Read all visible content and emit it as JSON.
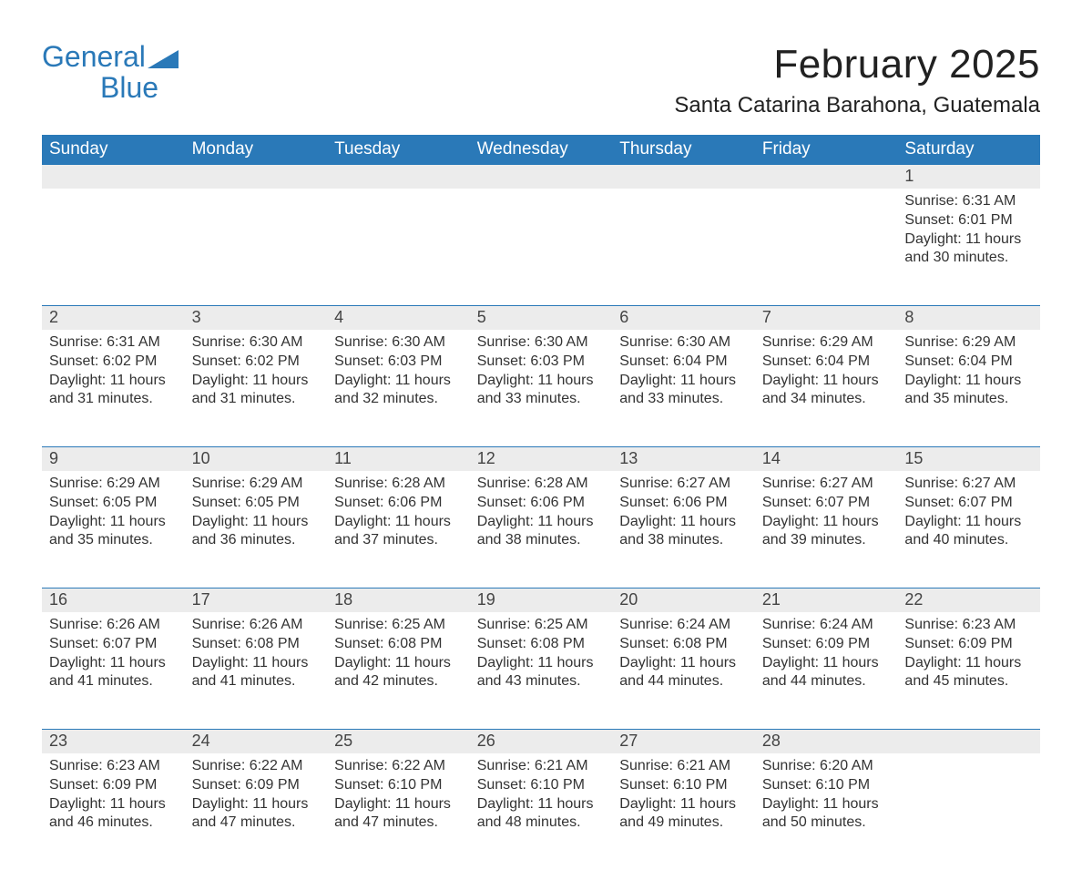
{
  "logo": {
    "general": "General",
    "blue": "Blue"
  },
  "header": {
    "month_title": "February 2025",
    "location": "Santa Catarina Barahona, Guatemala"
  },
  "colors": {
    "brand": "#2a79b8",
    "header_band": "#2a79b8",
    "header_text": "#ffffff",
    "daynum_bg": "#ececec",
    "body_text": "#333333",
    "page_bg": "#ffffff"
  },
  "weekdays": [
    "Sunday",
    "Monday",
    "Tuesday",
    "Wednesday",
    "Thursday",
    "Friday",
    "Saturday"
  ],
  "weeks": [
    {
      "days": [
        {
          "num": "",
          "sunrise": "",
          "sunset": "",
          "daylight1": "",
          "daylight2": ""
        },
        {
          "num": "",
          "sunrise": "",
          "sunset": "",
          "daylight1": "",
          "daylight2": ""
        },
        {
          "num": "",
          "sunrise": "",
          "sunset": "",
          "daylight1": "",
          "daylight2": ""
        },
        {
          "num": "",
          "sunrise": "",
          "sunset": "",
          "daylight1": "",
          "daylight2": ""
        },
        {
          "num": "",
          "sunrise": "",
          "sunset": "",
          "daylight1": "",
          "daylight2": ""
        },
        {
          "num": "",
          "sunrise": "",
          "sunset": "",
          "daylight1": "",
          "daylight2": ""
        },
        {
          "num": "1",
          "sunrise": "Sunrise: 6:31 AM",
          "sunset": "Sunset: 6:01 PM",
          "daylight1": "Daylight: 11 hours",
          "daylight2": "and 30 minutes."
        }
      ]
    },
    {
      "days": [
        {
          "num": "2",
          "sunrise": "Sunrise: 6:31 AM",
          "sunset": "Sunset: 6:02 PM",
          "daylight1": "Daylight: 11 hours",
          "daylight2": "and 31 minutes."
        },
        {
          "num": "3",
          "sunrise": "Sunrise: 6:30 AM",
          "sunset": "Sunset: 6:02 PM",
          "daylight1": "Daylight: 11 hours",
          "daylight2": "and 31 minutes."
        },
        {
          "num": "4",
          "sunrise": "Sunrise: 6:30 AM",
          "sunset": "Sunset: 6:03 PM",
          "daylight1": "Daylight: 11 hours",
          "daylight2": "and 32 minutes."
        },
        {
          "num": "5",
          "sunrise": "Sunrise: 6:30 AM",
          "sunset": "Sunset: 6:03 PM",
          "daylight1": "Daylight: 11 hours",
          "daylight2": "and 33 minutes."
        },
        {
          "num": "6",
          "sunrise": "Sunrise: 6:30 AM",
          "sunset": "Sunset: 6:04 PM",
          "daylight1": "Daylight: 11 hours",
          "daylight2": "and 33 minutes."
        },
        {
          "num": "7",
          "sunrise": "Sunrise: 6:29 AM",
          "sunset": "Sunset: 6:04 PM",
          "daylight1": "Daylight: 11 hours",
          "daylight2": "and 34 minutes."
        },
        {
          "num": "8",
          "sunrise": "Sunrise: 6:29 AM",
          "sunset": "Sunset: 6:04 PM",
          "daylight1": "Daylight: 11 hours",
          "daylight2": "and 35 minutes."
        }
      ]
    },
    {
      "days": [
        {
          "num": "9",
          "sunrise": "Sunrise: 6:29 AM",
          "sunset": "Sunset: 6:05 PM",
          "daylight1": "Daylight: 11 hours",
          "daylight2": "and 35 minutes."
        },
        {
          "num": "10",
          "sunrise": "Sunrise: 6:29 AM",
          "sunset": "Sunset: 6:05 PM",
          "daylight1": "Daylight: 11 hours",
          "daylight2": "and 36 minutes."
        },
        {
          "num": "11",
          "sunrise": "Sunrise: 6:28 AM",
          "sunset": "Sunset: 6:06 PM",
          "daylight1": "Daylight: 11 hours",
          "daylight2": "and 37 minutes."
        },
        {
          "num": "12",
          "sunrise": "Sunrise: 6:28 AM",
          "sunset": "Sunset: 6:06 PM",
          "daylight1": "Daylight: 11 hours",
          "daylight2": "and 38 minutes."
        },
        {
          "num": "13",
          "sunrise": "Sunrise: 6:27 AM",
          "sunset": "Sunset: 6:06 PM",
          "daylight1": "Daylight: 11 hours",
          "daylight2": "and 38 minutes."
        },
        {
          "num": "14",
          "sunrise": "Sunrise: 6:27 AM",
          "sunset": "Sunset: 6:07 PM",
          "daylight1": "Daylight: 11 hours",
          "daylight2": "and 39 minutes."
        },
        {
          "num": "15",
          "sunrise": "Sunrise: 6:27 AM",
          "sunset": "Sunset: 6:07 PM",
          "daylight1": "Daylight: 11 hours",
          "daylight2": "and 40 minutes."
        }
      ]
    },
    {
      "days": [
        {
          "num": "16",
          "sunrise": "Sunrise: 6:26 AM",
          "sunset": "Sunset: 6:07 PM",
          "daylight1": "Daylight: 11 hours",
          "daylight2": "and 41 minutes."
        },
        {
          "num": "17",
          "sunrise": "Sunrise: 6:26 AM",
          "sunset": "Sunset: 6:08 PM",
          "daylight1": "Daylight: 11 hours",
          "daylight2": "and 41 minutes."
        },
        {
          "num": "18",
          "sunrise": "Sunrise: 6:25 AM",
          "sunset": "Sunset: 6:08 PM",
          "daylight1": "Daylight: 11 hours",
          "daylight2": "and 42 minutes."
        },
        {
          "num": "19",
          "sunrise": "Sunrise: 6:25 AM",
          "sunset": "Sunset: 6:08 PM",
          "daylight1": "Daylight: 11 hours",
          "daylight2": "and 43 minutes."
        },
        {
          "num": "20",
          "sunrise": "Sunrise: 6:24 AM",
          "sunset": "Sunset: 6:08 PM",
          "daylight1": "Daylight: 11 hours",
          "daylight2": "and 44 minutes."
        },
        {
          "num": "21",
          "sunrise": "Sunrise: 6:24 AM",
          "sunset": "Sunset: 6:09 PM",
          "daylight1": "Daylight: 11 hours",
          "daylight2": "and 44 minutes."
        },
        {
          "num": "22",
          "sunrise": "Sunrise: 6:23 AM",
          "sunset": "Sunset: 6:09 PM",
          "daylight1": "Daylight: 11 hours",
          "daylight2": "and 45 minutes."
        }
      ]
    },
    {
      "days": [
        {
          "num": "23",
          "sunrise": "Sunrise: 6:23 AM",
          "sunset": "Sunset: 6:09 PM",
          "daylight1": "Daylight: 11 hours",
          "daylight2": "and 46 minutes."
        },
        {
          "num": "24",
          "sunrise": "Sunrise: 6:22 AM",
          "sunset": "Sunset: 6:09 PM",
          "daylight1": "Daylight: 11 hours",
          "daylight2": "and 47 minutes."
        },
        {
          "num": "25",
          "sunrise": "Sunrise: 6:22 AM",
          "sunset": "Sunset: 6:10 PM",
          "daylight1": "Daylight: 11 hours",
          "daylight2": "and 47 minutes."
        },
        {
          "num": "26",
          "sunrise": "Sunrise: 6:21 AM",
          "sunset": "Sunset: 6:10 PM",
          "daylight1": "Daylight: 11 hours",
          "daylight2": "and 48 minutes."
        },
        {
          "num": "27",
          "sunrise": "Sunrise: 6:21 AM",
          "sunset": "Sunset: 6:10 PM",
          "daylight1": "Daylight: 11 hours",
          "daylight2": "and 49 minutes."
        },
        {
          "num": "28",
          "sunrise": "Sunrise: 6:20 AM",
          "sunset": "Sunset: 6:10 PM",
          "daylight1": "Daylight: 11 hours",
          "daylight2": "and 50 minutes."
        },
        {
          "num": "",
          "sunrise": "",
          "sunset": "",
          "daylight1": "",
          "daylight2": ""
        }
      ]
    }
  ]
}
